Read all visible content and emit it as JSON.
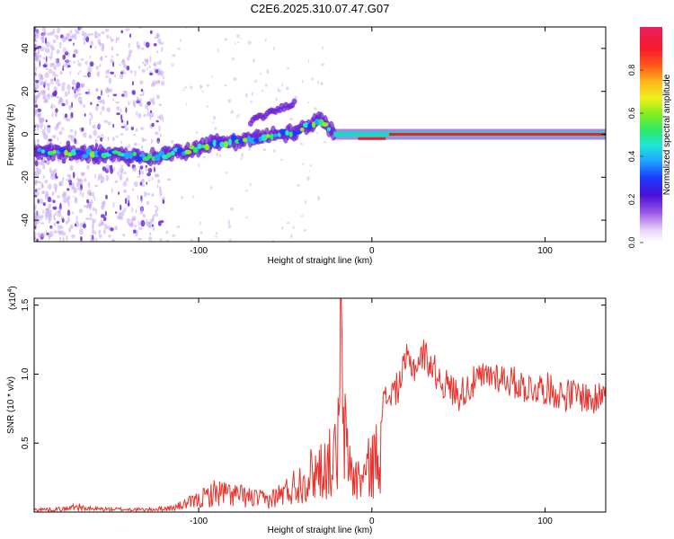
{
  "title": "C2E6.2025.310.07.47.G07",
  "chart_data": [
    {
      "type": "heatmap",
      "title": "C2E6.2025.310.07.47.G07",
      "xlabel": "Height of straight line (km)",
      "ylabel": "Frequency (Hz)",
      "xlim": [
        -195,
        135
      ],
      "ylim": [
        -50,
        50
      ],
      "x_ticks": [
        -100,
        0,
        100
      ],
      "y_ticks": [
        -40,
        -20,
        0,
        20,
        40
      ],
      "colorbar": {
        "label": "Normalized spectral amplitude",
        "range": [
          0,
          1
        ],
        "ticks": [
          0.0,
          0.2,
          0.4,
          0.6,
          0.8
        ]
      },
      "ridge": [
        {
          "x": -190,
          "y": -8
        },
        {
          "x": -170,
          "y": -9
        },
        {
          "x": -150,
          "y": -9
        },
        {
          "x": -130,
          "y": -11
        },
        {
          "x": -110,
          "y": -8
        },
        {
          "x": -90,
          "y": -4
        },
        {
          "x": -70,
          "y": -2
        },
        {
          "x": -50,
          "y": 0
        },
        {
          "x": -35,
          "y": 4
        },
        {
          "x": -30,
          "y": 7
        },
        {
          "x": -20,
          "y": -1
        },
        {
          "x": -10,
          "y": -1
        },
        {
          "x": 0,
          "y": -2
        },
        {
          "x": 10,
          "y": 0
        },
        {
          "x": 30,
          "y": 0
        },
        {
          "x": 60,
          "y": 0
        },
        {
          "x": 100,
          "y": 0
        },
        {
          "x": 135,
          "y": 0
        }
      ]
    },
    {
      "type": "line",
      "xlabel": "Height of straight line (km)",
      "ylabel": "SNR (10 * v/v)",
      "y_scale_label": "(x10",
      "y_scale_exp": "4",
      "y_scale_close": ")",
      "xlim": [
        -195,
        135
      ],
      "ylim": [
        0,
        1.55
      ],
      "x_ticks": [
        -100,
        0,
        100
      ],
      "y_ticks": [
        0.5,
        1.0,
        1.5
      ],
      "y_tick_labels": [
        "0.5",
        "1.0",
        "1.5"
      ],
      "series": [
        {
          "name": "SNR",
          "color": "#e8322b",
          "envelope": [
            {
              "x": -195,
              "y": 0.03
            },
            {
              "x": -175,
              "y": 0.04
            },
            {
              "x": -172,
              "y": 0.08
            },
            {
              "x": -165,
              "y": 0.04
            },
            {
              "x": -130,
              "y": 0.03
            },
            {
              "x": -115,
              "y": 0.05
            },
            {
              "x": -100,
              "y": 0.15
            },
            {
              "x": -90,
              "y": 0.25
            },
            {
              "x": -80,
              "y": 0.22
            },
            {
              "x": -70,
              "y": 0.18
            },
            {
              "x": -60,
              "y": 0.15
            },
            {
              "x": -50,
              "y": 0.25
            },
            {
              "x": -40,
              "y": 0.4
            },
            {
              "x": -30,
              "y": 0.55
            },
            {
              "x": -25,
              "y": 0.6
            },
            {
              "x": -20,
              "y": 0.7
            },
            {
              "x": -18,
              "y": 1.55
            },
            {
              "x": -15,
              "y": 0.8
            },
            {
              "x": -10,
              "y": 0.4
            },
            {
              "x": -5,
              "y": 0.45
            },
            {
              "x": 0,
              "y": 0.6
            },
            {
              "x": 5,
              "y": 0.75
            },
            {
              "x": 10,
              "y": 0.85
            },
            {
              "x": 15,
              "y": 0.9
            },
            {
              "x": 20,
              "y": 1.1
            },
            {
              "x": 25,
              "y": 1.05
            },
            {
              "x": 30,
              "y": 1.15
            },
            {
              "x": 40,
              "y": 0.95
            },
            {
              "x": 50,
              "y": 0.85
            },
            {
              "x": 60,
              "y": 0.95
            },
            {
              "x": 70,
              "y": 1.0
            },
            {
              "x": 80,
              "y": 0.95
            },
            {
              "x": 90,
              "y": 0.9
            },
            {
              "x": 100,
              "y": 0.9
            },
            {
              "x": 110,
              "y": 0.85
            },
            {
              "x": 120,
              "y": 0.85
            },
            {
              "x": 130,
              "y": 0.8
            },
            {
              "x": 135,
              "y": 0.95
            }
          ]
        }
      ]
    }
  ]
}
